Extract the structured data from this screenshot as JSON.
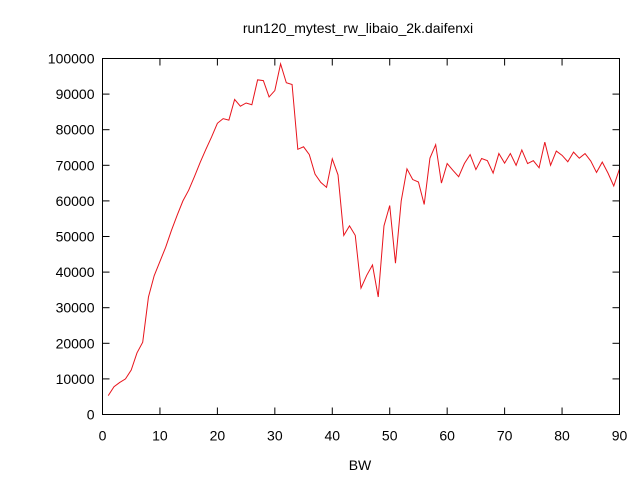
{
  "chart_data": {
    "type": "line",
    "title": "run120_mytest_rw_libaio_2k.daifenxi",
    "xlabel": "BW",
    "ylabel": "",
    "xlim": [
      0,
      90
    ],
    "ylim": [
      0,
      100000
    ],
    "xticks": [
      0,
      10,
      20,
      30,
      40,
      50,
      60,
      70,
      80,
      90
    ],
    "yticks": [
      0,
      10000,
      20000,
      30000,
      40000,
      50000,
      60000,
      70000,
      80000,
      90000,
      100000
    ],
    "grid": false,
    "legend": "none",
    "series": [
      {
        "color": "#e8141c",
        "x": [
          1,
          2,
          3,
          4,
          5,
          6,
          7,
          8,
          9,
          10,
          11,
          12,
          13,
          14,
          15,
          16,
          17,
          18,
          19,
          20,
          21,
          22,
          23,
          24,
          25,
          26,
          27,
          28,
          29,
          30,
          31,
          32,
          33,
          34,
          35,
          36,
          37,
          38,
          39,
          40,
          41,
          42,
          43,
          44,
          45,
          46,
          47,
          48,
          49,
          50,
          51,
          52,
          53,
          54,
          55,
          56,
          57,
          58,
          59,
          60,
          61,
          62,
          63,
          64,
          65,
          66,
          67,
          68,
          69,
          70,
          71,
          72,
          73,
          74,
          75,
          76,
          77,
          78,
          79,
          80,
          81,
          82,
          83,
          84,
          85,
          86,
          87,
          88,
          89,
          90
        ],
        "y": [
          5300,
          7800,
          9000,
          10000,
          12500,
          17300,
          20300,
          33000,
          39000,
          43000,
          47000,
          51700,
          56000,
          60000,
          63000,
          66800,
          70800,
          74500,
          78000,
          81800,
          83100,
          82700,
          88500,
          86600,
          87500,
          87000,
          94000,
          93800,
          89200,
          91000,
          98500,
          93200,
          92700,
          74500,
          75200,
          73000,
          67500,
          65200,
          63800,
          71800,
          67300,
          50300,
          53000,
          50300,
          35500,
          39100,
          42000,
          33000,
          53000,
          58700,
          42500,
          60000,
          69000,
          66000,
          65300,
          59000,
          72000,
          75800,
          65000,
          70500,
          68600,
          66800,
          70500,
          73000,
          68800,
          71900,
          71300,
          67800,
          73300,
          70600,
          73300,
          70000,
          74300,
          70500,
          71300,
          69300,
          76500,
          70000,
          74000,
          72800,
          71000,
          73700,
          72000,
          73300,
          71200,
          68000,
          70900,
          67800,
          64200,
          69000
        ]
      }
    ]
  }
}
